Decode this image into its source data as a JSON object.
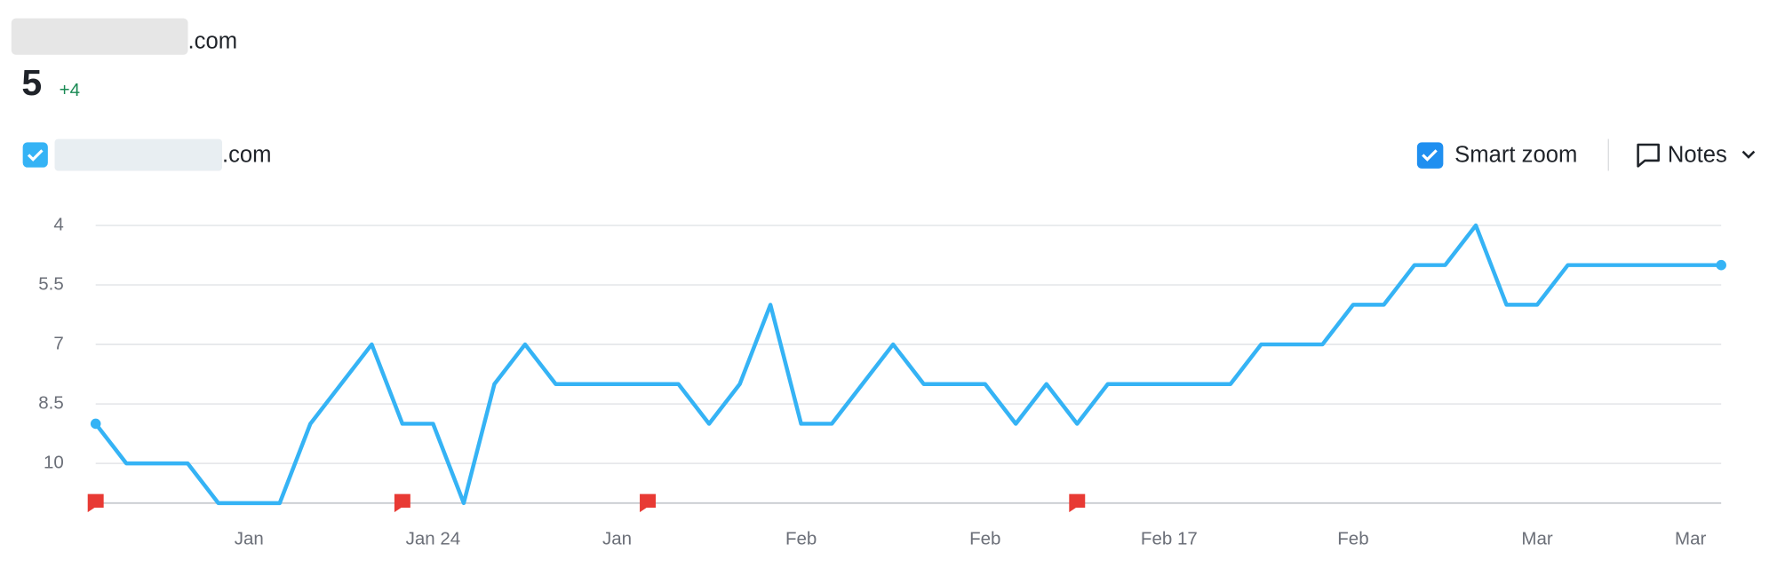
{
  "header": {
    "domain": ".com",
    "position": "5",
    "change": "+4"
  },
  "controls": {
    "smart_zoom": "Smart zoom",
    "notes": "Notes"
  },
  "chart_data": {
    "type": "line",
    "categories": [
      null,
      null,
      null,
      null,
      null,
      "Jan",
      null,
      null,
      null,
      null,
      null,
      "Jan 24",
      null,
      null,
      null,
      null,
      null,
      "Jan",
      null,
      null,
      null,
      null,
      null,
      "Feb",
      null,
      null,
      null,
      null,
      null,
      "Feb",
      null,
      null,
      null,
      null,
      null,
      "Feb 17",
      null,
      null,
      null,
      null,
      null,
      "Feb",
      null,
      null,
      null,
      null,
      null,
      "Mar",
      null,
      null,
      null,
      null,
      "Mar",
      null
    ],
    "series": [
      {
        "name": ".com",
        "color": "#35b3f5",
        "values": [
          9,
          10,
          10,
          10,
          11,
          11,
          11,
          9,
          8,
          7,
          9,
          9,
          11,
          8,
          7,
          8,
          8,
          8,
          8,
          8,
          9,
          8,
          6,
          9,
          9,
          8,
          7,
          8,
          8,
          8,
          9,
          8,
          9,
          8,
          8,
          8,
          8,
          8,
          7,
          7,
          7,
          6,
          6,
          5,
          5,
          4,
          6,
          6,
          5,
          5,
          5,
          5,
          5,
          5
        ]
      }
    ],
    "note_flags": [
      0,
      10,
      18,
      32
    ],
    "flag_color": "#e83a34",
    "ylim": [
      11,
      4
    ],
    "yticks": [
      4,
      5.5,
      7,
      8.5,
      10
    ],
    "grid": true
  }
}
